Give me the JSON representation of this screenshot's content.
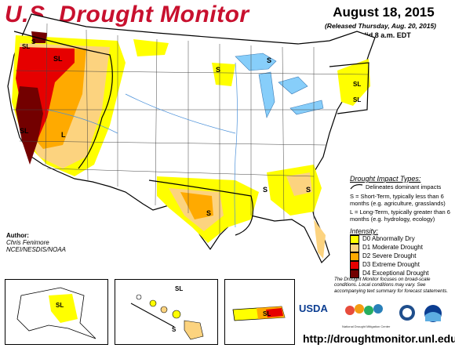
{
  "header": {
    "title": "U.S. Drought Monitor",
    "date": "August 18, 2015",
    "released": "(Released Thursday, Aug. 20, 2015)",
    "valid": "Valid 8 a.m. EDT"
  },
  "map_labels": {
    "s": "S",
    "sl": "SL",
    "l": "L"
  },
  "impact": {
    "title": "Drought Impact Types:",
    "delineates": "Delineates dominant impacts",
    "short_term": "S = Short-Term, typically less than 6 months (e.g. agriculture, grasslands)",
    "long_term": "L = Long-Term, typically greater than 6 months (e.g. hydrology, ecology)"
  },
  "intensity": {
    "title": "Intensity:",
    "levels": [
      {
        "label": "D0 Abnormally Dry",
        "color": "#ffff00"
      },
      {
        "label": "D1 Moderate Drought",
        "color": "#fcd37f"
      },
      {
        "label": "D2 Severe Drought",
        "color": "#ffaa00"
      },
      {
        "label": "D3 Extreme Drought",
        "color": "#e60000"
      },
      {
        "label": "D4 Exceptional Drought",
        "color": "#730000"
      }
    ]
  },
  "author": {
    "heading": "Author:",
    "name": "Chris Fenimore",
    "org": "NCEI/NESDIS/NOAA"
  },
  "footnote": "The Drought Monitor focuses on broad-scale conditions. Local conditions may vary. See accompanying text summary for forecast statements.",
  "url": "http://droughtmonitor.unl.edu/",
  "logos": {
    "usda": "USDA",
    "ndmc": "National Drought Mitigation Center"
  },
  "colors": {
    "title": "#c8102e",
    "water": "#87cefa",
    "land": "#ffffff"
  }
}
